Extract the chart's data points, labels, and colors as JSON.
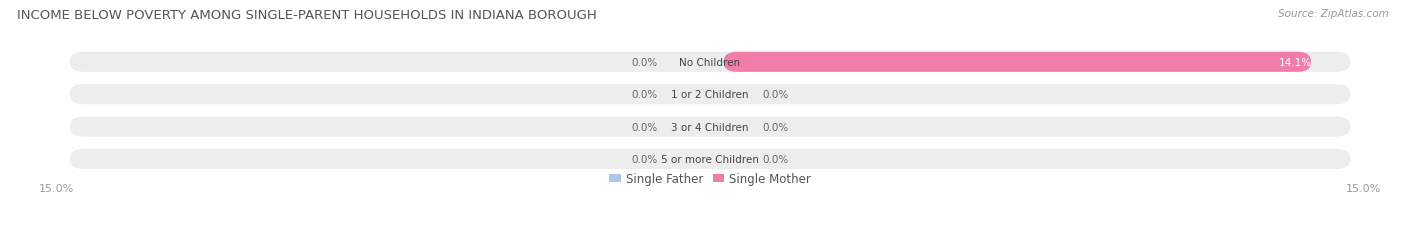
{
  "title": "INCOME BELOW POVERTY AMONG SINGLE-PARENT HOUSEHOLDS IN INDIANA BOROUGH",
  "source": "Source: ZipAtlas.com",
  "categories": [
    "No Children",
    "1 or 2 Children",
    "3 or 4 Children",
    "5 or more Children"
  ],
  "single_father_values": [
    0.0,
    0.0,
    0.0,
    0.0
  ],
  "single_mother_values": [
    14.1,
    0.0,
    0.0,
    0.0
  ],
  "father_color": "#aec6e8",
  "mother_color": "#f07daa",
  "axis_max": 15.0,
  "axis_min": -15.0,
  "bg_color": "#ffffff",
  "bar_bg_color": "#ededee",
  "bar_height": 0.62,
  "title_fontsize": 9.5,
  "label_fontsize": 7.5,
  "tick_fontsize": 8.0,
  "source_fontsize": 7.5,
  "legend_fontsize": 8.5,
  "axis_label_color": "#999999",
  "title_color": "#555555",
  "source_color": "#999999",
  "value_label_color_dark": "#666666",
  "value_label_color_light": "#ffffff",
  "cat_label_color": "#444444"
}
